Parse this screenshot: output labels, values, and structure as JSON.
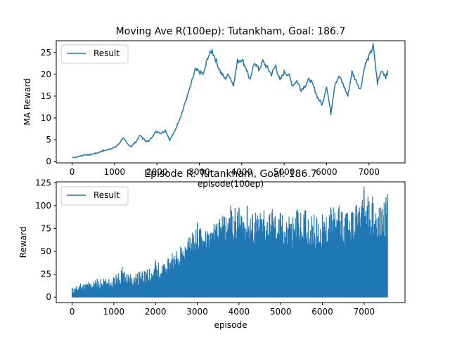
{
  "colors": {
    "series": "#1f77b4",
    "axes": "#000000",
    "background": "#ffffff"
  },
  "chart_data": [
    {
      "type": "line",
      "title": "Moving Ave R(100ep): Tutankham, Goal: 186.7",
      "xlabel": "episode(100ep)",
      "ylabel": "MA Reward",
      "xlim": [
        -375,
        7850
      ],
      "ylim": [
        -0.3,
        27.7
      ],
      "xticks": [
        0,
        1000,
        2000,
        3000,
        4000,
        5000,
        6000,
        7000
      ],
      "yticks": [
        0,
        5,
        10,
        15,
        20,
        25
      ],
      "legend": "upper-left",
      "series": [
        {
          "name": "Result",
          "x": [
            0,
            100,
            200,
            300,
            400,
            500,
            600,
            700,
            800,
            900,
            1000,
            1100,
            1200,
            1300,
            1400,
            1500,
            1600,
            1700,
            1800,
            1900,
            2000,
            2100,
            2200,
            2300,
            2400,
            2500,
            2600,
            2700,
            2800,
            2900,
            3000,
            3100,
            3200,
            3300,
            3400,
            3500,
            3600,
            3700,
            3800,
            3900,
            4000,
            4100,
            4200,
            4300,
            4400,
            4500,
            4600,
            4700,
            4800,
            4900,
            5000,
            5100,
            5200,
            5300,
            5400,
            5500,
            5600,
            5700,
            5800,
            5900,
            6000,
            6100,
            6200,
            6300,
            6400,
            6500,
            6600,
            6700,
            6800,
            6900,
            7000,
            7100,
            7200,
            7300,
            7400,
            7450
          ],
          "values": [
            1.0,
            1.0,
            1.3,
            1.6,
            1.5,
            1.8,
            2.0,
            2.4,
            2.6,
            3.0,
            3.2,
            4.0,
            5.5,
            4.0,
            3.5,
            4.5,
            6.0,
            5.0,
            4.5,
            6.0,
            7.0,
            6.5,
            7.2,
            5.0,
            6.5,
            9.0,
            11.5,
            14.5,
            17.5,
            21.0,
            20.5,
            20.0,
            24.0,
            25.5,
            23.0,
            20.5,
            19.0,
            20.0,
            17.5,
            23.0,
            23.5,
            21.5,
            18.5,
            23.0,
            21.0,
            23.0,
            21.5,
            20.0,
            22.0,
            18.5,
            20.5,
            20.0,
            17.5,
            18.5,
            16.5,
            17.5,
            19.0,
            17.0,
            14.5,
            13.0,
            17.5,
            11.0,
            18.0,
            19.5,
            17.5,
            15.0,
            20.5,
            18.5,
            16.5,
            22.0,
            24.0,
            26.5,
            18.0,
            21.0,
            19.5,
            20.5
          ]
        }
      ]
    },
    {
      "type": "line",
      "title": "Episode R: Tutankham, Goal: 186.7",
      "xlabel": "episode",
      "ylabel": "Reward",
      "xlim": [
        -380,
        7980
      ],
      "ylim": [
        -6,
        126
      ],
      "xticks": [
        0,
        1000,
        2000,
        3000,
        4000,
        5000,
        6000,
        7000
      ],
      "yticks": [
        0,
        25,
        50,
        75,
        100,
        125
      ],
      "legend": "upper-left",
      "series": [
        {
          "name": "Result",
          "x": [
            0,
            200,
            400,
            600,
            800,
            1000,
            1200,
            1400,
            1600,
            1800,
            2000,
            2200,
            2400,
            2600,
            2800,
            3000,
            3200,
            3400,
            3600,
            3800,
            4000,
            4200,
            4400,
            4600,
            4800,
            5000,
            5200,
            5400,
            5600,
            5800,
            6000,
            6200,
            6400,
            6600,
            6800,
            7000,
            7200,
            7400,
            7560
          ],
          "peak": [
            10,
            15,
            17,
            20,
            20,
            22,
            33,
            25,
            28,
            30,
            40,
            36,
            48,
            55,
            65,
            82,
            72,
            80,
            88,
            100,
            98,
            100,
            92,
            95,
            96,
            92,
            88,
            96,
            95,
            90,
            90,
            98,
            100,
            92,
            99,
            121,
            110,
            98,
            113
          ],
          "body": [
            4,
            6,
            8,
            9,
            9,
            11,
            14,
            12,
            13,
            15,
            20,
            22,
            30,
            36,
            44,
            52,
            50,
            55,
            58,
            62,
            64,
            62,
            56,
            58,
            60,
            58,
            52,
            56,
            58,
            52,
            54,
            60,
            62,
            56,
            64,
            72,
            66,
            60,
            62
          ],
          "floor": 0
        }
      ]
    }
  ]
}
